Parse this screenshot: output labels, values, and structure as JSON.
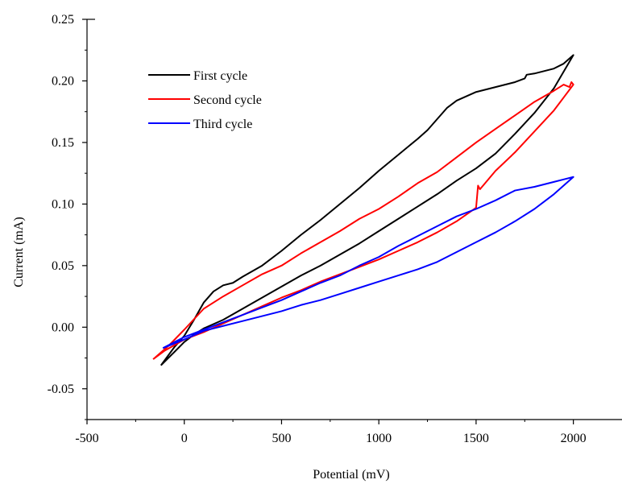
{
  "chart_data": {
    "type": "line",
    "title": "",
    "xlabel": "Potential (mV)",
    "ylabel": "Current (mA)",
    "xlim": [
      -500,
      2250
    ],
    "ylim": [
      -0.075,
      0.25
    ],
    "x_ticks": [
      -500,
      0,
      500,
      1000,
      1500,
      2000
    ],
    "x_tick_labels": [
      "-500",
      "0",
      "500",
      "1000",
      "1500",
      "2000"
    ],
    "y_ticks": [
      -0.05,
      0.0,
      0.05,
      0.1,
      0.15,
      0.2,
      0.25
    ],
    "y_tick_labels": [
      "-0.05",
      "0.00",
      "0.05",
      "0.10",
      "0.15",
      "0.20",
      "0.25"
    ],
    "grid": false,
    "legend_position": "top-left",
    "series": [
      {
        "name": "First cycle",
        "color": "#000000",
        "points": [
          [
            -120,
            -0.031
          ],
          [
            -50,
            -0.02
          ],
          [
            0,
            -0.012
          ],
          [
            50,
            -0.006
          ],
          [
            100,
            -0.001
          ],
          [
            200,
            0.006
          ],
          [
            300,
            0.015
          ],
          [
            400,
            0.024
          ],
          [
            500,
            0.033
          ],
          [
            600,
            0.042
          ],
          [
            700,
            0.05
          ],
          [
            800,
            0.059
          ],
          [
            900,
            0.068
          ],
          [
            1000,
            0.078
          ],
          [
            1100,
            0.088
          ],
          [
            1200,
            0.098
          ],
          [
            1300,
            0.108
          ],
          [
            1400,
            0.119
          ],
          [
            1500,
            0.129
          ],
          [
            1600,
            0.141
          ],
          [
            1700,
            0.157
          ],
          [
            1800,
            0.174
          ],
          [
            1900,
            0.194
          ],
          [
            2000,
            0.221
          ],
          [
            1950,
            0.214
          ],
          [
            1900,
            0.21
          ],
          [
            1800,
            0.206
          ],
          [
            1760,
            0.205
          ],
          [
            1750,
            0.202
          ],
          [
            1700,
            0.199
          ],
          [
            1600,
            0.195
          ],
          [
            1500,
            0.191
          ],
          [
            1400,
            0.184
          ],
          [
            1350,
            0.178
          ],
          [
            1300,
            0.169
          ],
          [
            1250,
            0.16
          ],
          [
            1200,
            0.153
          ],
          [
            1100,
            0.14
          ],
          [
            1000,
            0.127
          ],
          [
            900,
            0.113
          ],
          [
            800,
            0.1
          ],
          [
            700,
            0.087
          ],
          [
            600,
            0.075
          ],
          [
            500,
            0.062
          ],
          [
            400,
            0.05
          ],
          [
            300,
            0.041
          ],
          [
            250,
            0.036
          ],
          [
            200,
            0.034
          ],
          [
            150,
            0.029
          ],
          [
            100,
            0.02
          ],
          [
            50,
            0.006
          ],
          [
            0,
            -0.007
          ],
          [
            -50,
            -0.016
          ],
          [
            -120,
            -0.031
          ]
        ]
      },
      {
        "name": "Second cycle",
        "color": "#ff0000",
        "points": [
          [
            -160,
            -0.026
          ],
          [
            -100,
            -0.019
          ],
          [
            0,
            -0.01
          ],
          [
            100,
            -0.004
          ],
          [
            200,
            0.003
          ],
          [
            300,
            0.01
          ],
          [
            400,
            0.017
          ],
          [
            500,
            0.024
          ],
          [
            600,
            0.03
          ],
          [
            700,
            0.037
          ],
          [
            800,
            0.043
          ],
          [
            900,
            0.049
          ],
          [
            1000,
            0.055
          ],
          [
            1100,
            0.062
          ],
          [
            1200,
            0.069
          ],
          [
            1300,
            0.077
          ],
          [
            1400,
            0.086
          ],
          [
            1500,
            0.097
          ],
          [
            1510,
            0.115
          ],
          [
            1520,
            0.112
          ],
          [
            1600,
            0.127
          ],
          [
            1700,
            0.142
          ],
          [
            1800,
            0.159
          ],
          [
            1900,
            0.176
          ],
          [
            2000,
            0.197
          ],
          [
            1990,
            0.199
          ],
          [
            1980,
            0.195
          ],
          [
            1950,
            0.197
          ],
          [
            1900,
            0.192
          ],
          [
            1800,
            0.183
          ],
          [
            1700,
            0.172
          ],
          [
            1600,
            0.161
          ],
          [
            1500,
            0.15
          ],
          [
            1400,
            0.138
          ],
          [
            1300,
            0.126
          ],
          [
            1200,
            0.117
          ],
          [
            1100,
            0.106
          ],
          [
            1000,
            0.096
          ],
          [
            900,
            0.088
          ],
          [
            800,
            0.078
          ],
          [
            700,
            0.069
          ],
          [
            600,
            0.06
          ],
          [
            500,
            0.05
          ],
          [
            400,
            0.043
          ],
          [
            300,
            0.034
          ],
          [
            200,
            0.025
          ],
          [
            100,
            0.015
          ],
          [
            0,
            -0.002
          ],
          [
            -80,
            -0.015
          ],
          [
            -160,
            -0.026
          ]
        ]
      },
      {
        "name": "Third cycle",
        "color": "#0000ff",
        "points": [
          [
            -110,
            -0.017
          ],
          [
            0,
            -0.01
          ],
          [
            100,
            -0.003
          ],
          [
            200,
            0.001
          ],
          [
            300,
            0.005
          ],
          [
            400,
            0.009
          ],
          [
            500,
            0.013
          ],
          [
            600,
            0.018
          ],
          [
            700,
            0.022
          ],
          [
            800,
            0.027
          ],
          [
            900,
            0.032
          ],
          [
            1000,
            0.037
          ],
          [
            1100,
            0.042
          ],
          [
            1200,
            0.047
          ],
          [
            1300,
            0.053
          ],
          [
            1400,
            0.061
          ],
          [
            1500,
            0.069
          ],
          [
            1600,
            0.077
          ],
          [
            1700,
            0.086
          ],
          [
            1800,
            0.096
          ],
          [
            1900,
            0.108
          ],
          [
            2000,
            0.122
          ],
          [
            1950,
            0.12
          ],
          [
            1900,
            0.118
          ],
          [
            1800,
            0.114
          ],
          [
            1700,
            0.111
          ],
          [
            1600,
            0.103
          ],
          [
            1500,
            0.096
          ],
          [
            1400,
            0.09
          ],
          [
            1300,
            0.082
          ],
          [
            1200,
            0.074
          ],
          [
            1100,
            0.066
          ],
          [
            1000,
            0.057
          ],
          [
            900,
            0.05
          ],
          [
            800,
            0.042
          ],
          [
            700,
            0.036
          ],
          [
            600,
            0.029
          ],
          [
            500,
            0.022
          ],
          [
            400,
            0.016
          ],
          [
            300,
            0.01
          ],
          [
            200,
            0.004
          ],
          [
            100,
            -0.002
          ],
          [
            0,
            -0.008
          ],
          [
            -110,
            -0.017
          ]
        ]
      }
    ]
  }
}
